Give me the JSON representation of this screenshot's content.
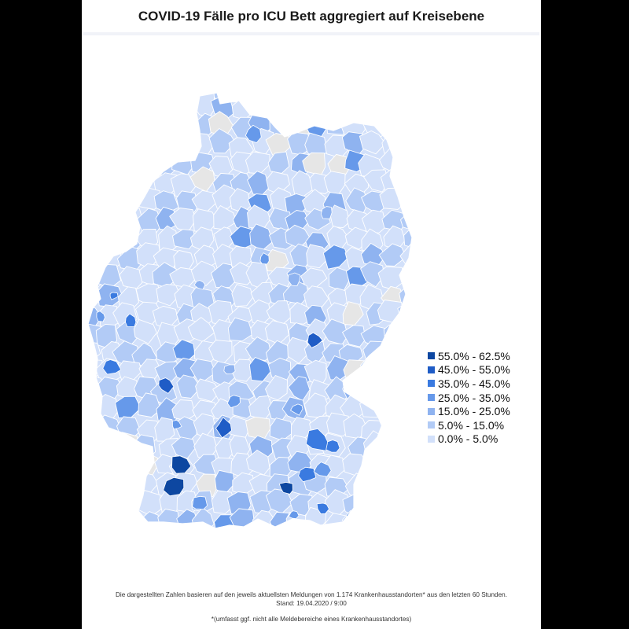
{
  "title": "COVID-19 Fälle pro ICU Bett aggregiert auf Kreisebene",
  "legend": [
    {
      "label": "55.0% - 62.5%",
      "color": "#0d47a1"
    },
    {
      "label": "45.0% - 55.0%",
      "color": "#1f5cc6"
    },
    {
      "label": "35.0% - 45.0%",
      "color": "#3a7ae0"
    },
    {
      "label": "25.0% - 35.0%",
      "color": "#6699ea"
    },
    {
      "label": "15.0% - 25.0%",
      "color": "#8fb3f0"
    },
    {
      "label": "5.0% - 15.0%",
      "color": "#b2cbf6"
    },
    {
      "label": "0.0% - 5.0%",
      "color": "#d2e0fa"
    }
  ],
  "no_data_color": "#e6e6e6",
  "footnote": {
    "line1": "Die dargestellten Zahlen basieren auf den jeweils aktuellsten Meldungen von 1.174 Krankenhausstandorten* aus den letzten 60 Stunden.",
    "line2": "Stand: 19.04.2020 / 9:00",
    "line3": "*(umfasst ggf. nicht alle Meldebereiche eines Krankenhausstandortes)"
  }
}
